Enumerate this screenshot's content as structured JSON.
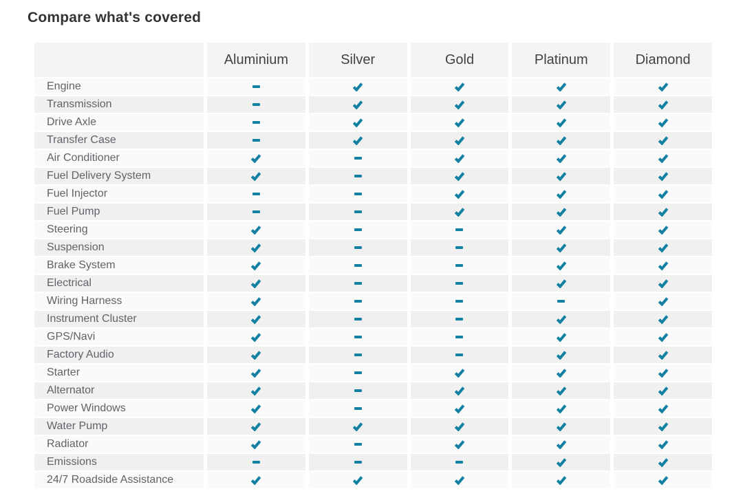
{
  "page_title": "Compare what's covered",
  "colors": {
    "accent": "#1180a3",
    "header_bg": "#f4f4f4",
    "row_bg_light": "#fafafa",
    "row_bg_dark": "#f0f0f0",
    "title_text": "#333333",
    "header_text": "#424242",
    "label_text": "#5f6368"
  },
  "icons": {
    "covered": "check-icon",
    "not_covered": "dash-icon"
  },
  "chart_data": {
    "type": "table",
    "title": "Compare what's covered",
    "columns": [
      "Aluminium",
      "Silver",
      "Gold",
      "Platinum",
      "Diamond"
    ],
    "cell_values": {
      "true": "check",
      "false": "dash"
    },
    "rows": [
      {
        "label": "Engine",
        "covered": [
          false,
          true,
          true,
          true,
          true
        ]
      },
      {
        "label": "Transmission",
        "covered": [
          false,
          true,
          true,
          true,
          true
        ]
      },
      {
        "label": "Drive Axle",
        "covered": [
          false,
          true,
          true,
          true,
          true
        ]
      },
      {
        "label": "Transfer Case",
        "covered": [
          false,
          true,
          true,
          true,
          true
        ]
      },
      {
        "label": "Air Conditioner",
        "covered": [
          true,
          false,
          true,
          true,
          true
        ]
      },
      {
        "label": "Fuel Delivery System",
        "covered": [
          true,
          false,
          true,
          true,
          true
        ]
      },
      {
        "label": "Fuel Injector",
        "covered": [
          false,
          false,
          true,
          true,
          true
        ]
      },
      {
        "label": "Fuel Pump",
        "covered": [
          false,
          false,
          true,
          true,
          true
        ]
      },
      {
        "label": "Steering",
        "covered": [
          true,
          false,
          false,
          true,
          true
        ]
      },
      {
        "label": "Suspension",
        "covered": [
          true,
          false,
          false,
          true,
          true
        ]
      },
      {
        "label": "Brake System",
        "covered": [
          true,
          false,
          false,
          true,
          true
        ]
      },
      {
        "label": "Electrical",
        "covered": [
          true,
          false,
          false,
          true,
          true
        ]
      },
      {
        "label": "Wiring Harness",
        "covered": [
          true,
          false,
          false,
          false,
          true
        ]
      },
      {
        "label": "Instrument Cluster",
        "covered": [
          true,
          false,
          false,
          true,
          true
        ]
      },
      {
        "label": "GPS/Navi",
        "covered": [
          true,
          false,
          false,
          true,
          true
        ]
      },
      {
        "label": "Factory Audio",
        "covered": [
          true,
          false,
          false,
          true,
          true
        ]
      },
      {
        "label": "Starter",
        "covered": [
          true,
          false,
          true,
          true,
          true
        ]
      },
      {
        "label": "Alternator",
        "covered": [
          true,
          false,
          true,
          true,
          true
        ]
      },
      {
        "label": "Power Windows",
        "covered": [
          true,
          false,
          true,
          true,
          true
        ]
      },
      {
        "label": "Water Pump",
        "covered": [
          true,
          true,
          true,
          true,
          true
        ]
      },
      {
        "label": "Radiator",
        "covered": [
          true,
          false,
          true,
          true,
          true
        ]
      },
      {
        "label": "Emissions",
        "covered": [
          false,
          false,
          false,
          true,
          true
        ]
      },
      {
        "label": "24/7 Roadside Assistance",
        "covered": [
          true,
          true,
          true,
          true,
          true
        ]
      }
    ]
  }
}
